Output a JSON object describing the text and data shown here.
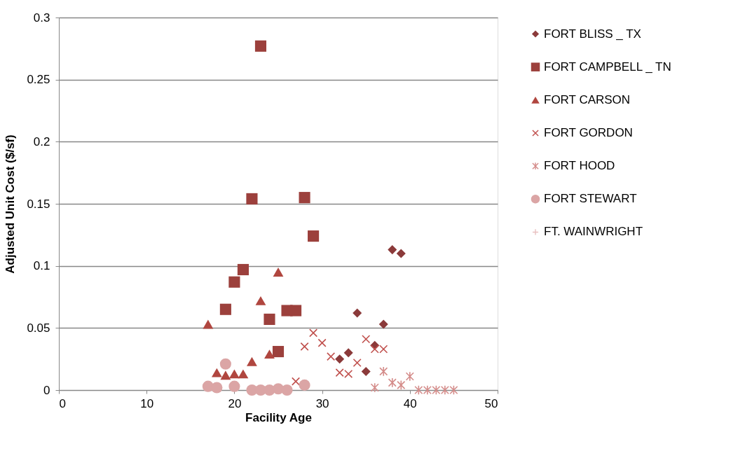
{
  "chart_data": {
    "type": "scatter",
    "xlabel": "Facility Age",
    "ylabel": "Adjusted Unit Cost ($/sf)",
    "xlim": [
      0,
      50
    ],
    "xticks": [
      0,
      10,
      20,
      30,
      40,
      50
    ],
    "ylim": [
      0,
      0.3
    ],
    "yticks": [
      0,
      0.05,
      0.1,
      0.15,
      0.2,
      0.25,
      0.3
    ],
    "grid": "y",
    "legend": "right",
    "series": [
      {
        "name": "FORT BLISS _ TX",
        "color": "#8b3a3a",
        "marker": "diamond",
        "x": [
          38,
          39,
          34,
          37,
          36,
          33,
          32,
          35
        ],
        "values": [
          0.113,
          0.11,
          0.062,
          0.053,
          0.036,
          0.03,
          0.025,
          0.015
        ]
      },
      {
        "name": "FORT CAMPBELL _ TN",
        "color": "#9c403c",
        "marker": "square",
        "x": [
          23,
          22,
          28,
          29,
          21,
          20,
          19,
          24,
          26,
          27,
          25
        ],
        "values": [
          0.277,
          0.154,
          0.155,
          0.124,
          0.097,
          0.087,
          0.065,
          0.057,
          0.064,
          0.064,
          0.031
        ]
      },
      {
        "name": "FORT CARSON",
        "color": "#b0463f",
        "marker": "triangle",
        "x": [
          17,
          23,
          25,
          24,
          22,
          18,
          19,
          20,
          21
        ],
        "values": [
          0.053,
          0.072,
          0.095,
          0.029,
          0.023,
          0.014,
          0.012,
          0.013,
          0.013
        ]
      },
      {
        "name": "FORT GORDON",
        "color": "#c0504d",
        "marker": "cross",
        "x": [
          27,
          29,
          28,
          30,
          31,
          32,
          33,
          34,
          35,
          36,
          37
        ],
        "values": [
          0.007,
          0.046,
          0.035,
          0.038,
          0.027,
          0.014,
          0.013,
          0.022,
          0.041,
          0.033,
          0.033
        ]
      },
      {
        "name": "FORT HOOD",
        "color": "#d48c8a",
        "x": [
          36,
          37,
          38,
          39,
          40,
          41,
          42,
          43,
          44,
          45
        ],
        "values": [
          0.002,
          0.015,
          0.006,
          0.004,
          0.011,
          0,
          0,
          0,
          0,
          0
        ]
      },
      {
        "name": "FORT STEWART",
        "color": "#dba5a5",
        "marker": "circle",
        "x": [
          17,
          18,
          19,
          20,
          22,
          23,
          24,
          25,
          26,
          28
        ],
        "values": [
          0.003,
          0.002,
          0.021,
          0.003,
          0,
          0,
          0,
          0.001,
          0,
          0.004
        ]
      },
      {
        "name": "FT. WAINWRIGHT",
        "color": "#e8c0c0",
        "marker": "plus"
      }
    ]
  }
}
